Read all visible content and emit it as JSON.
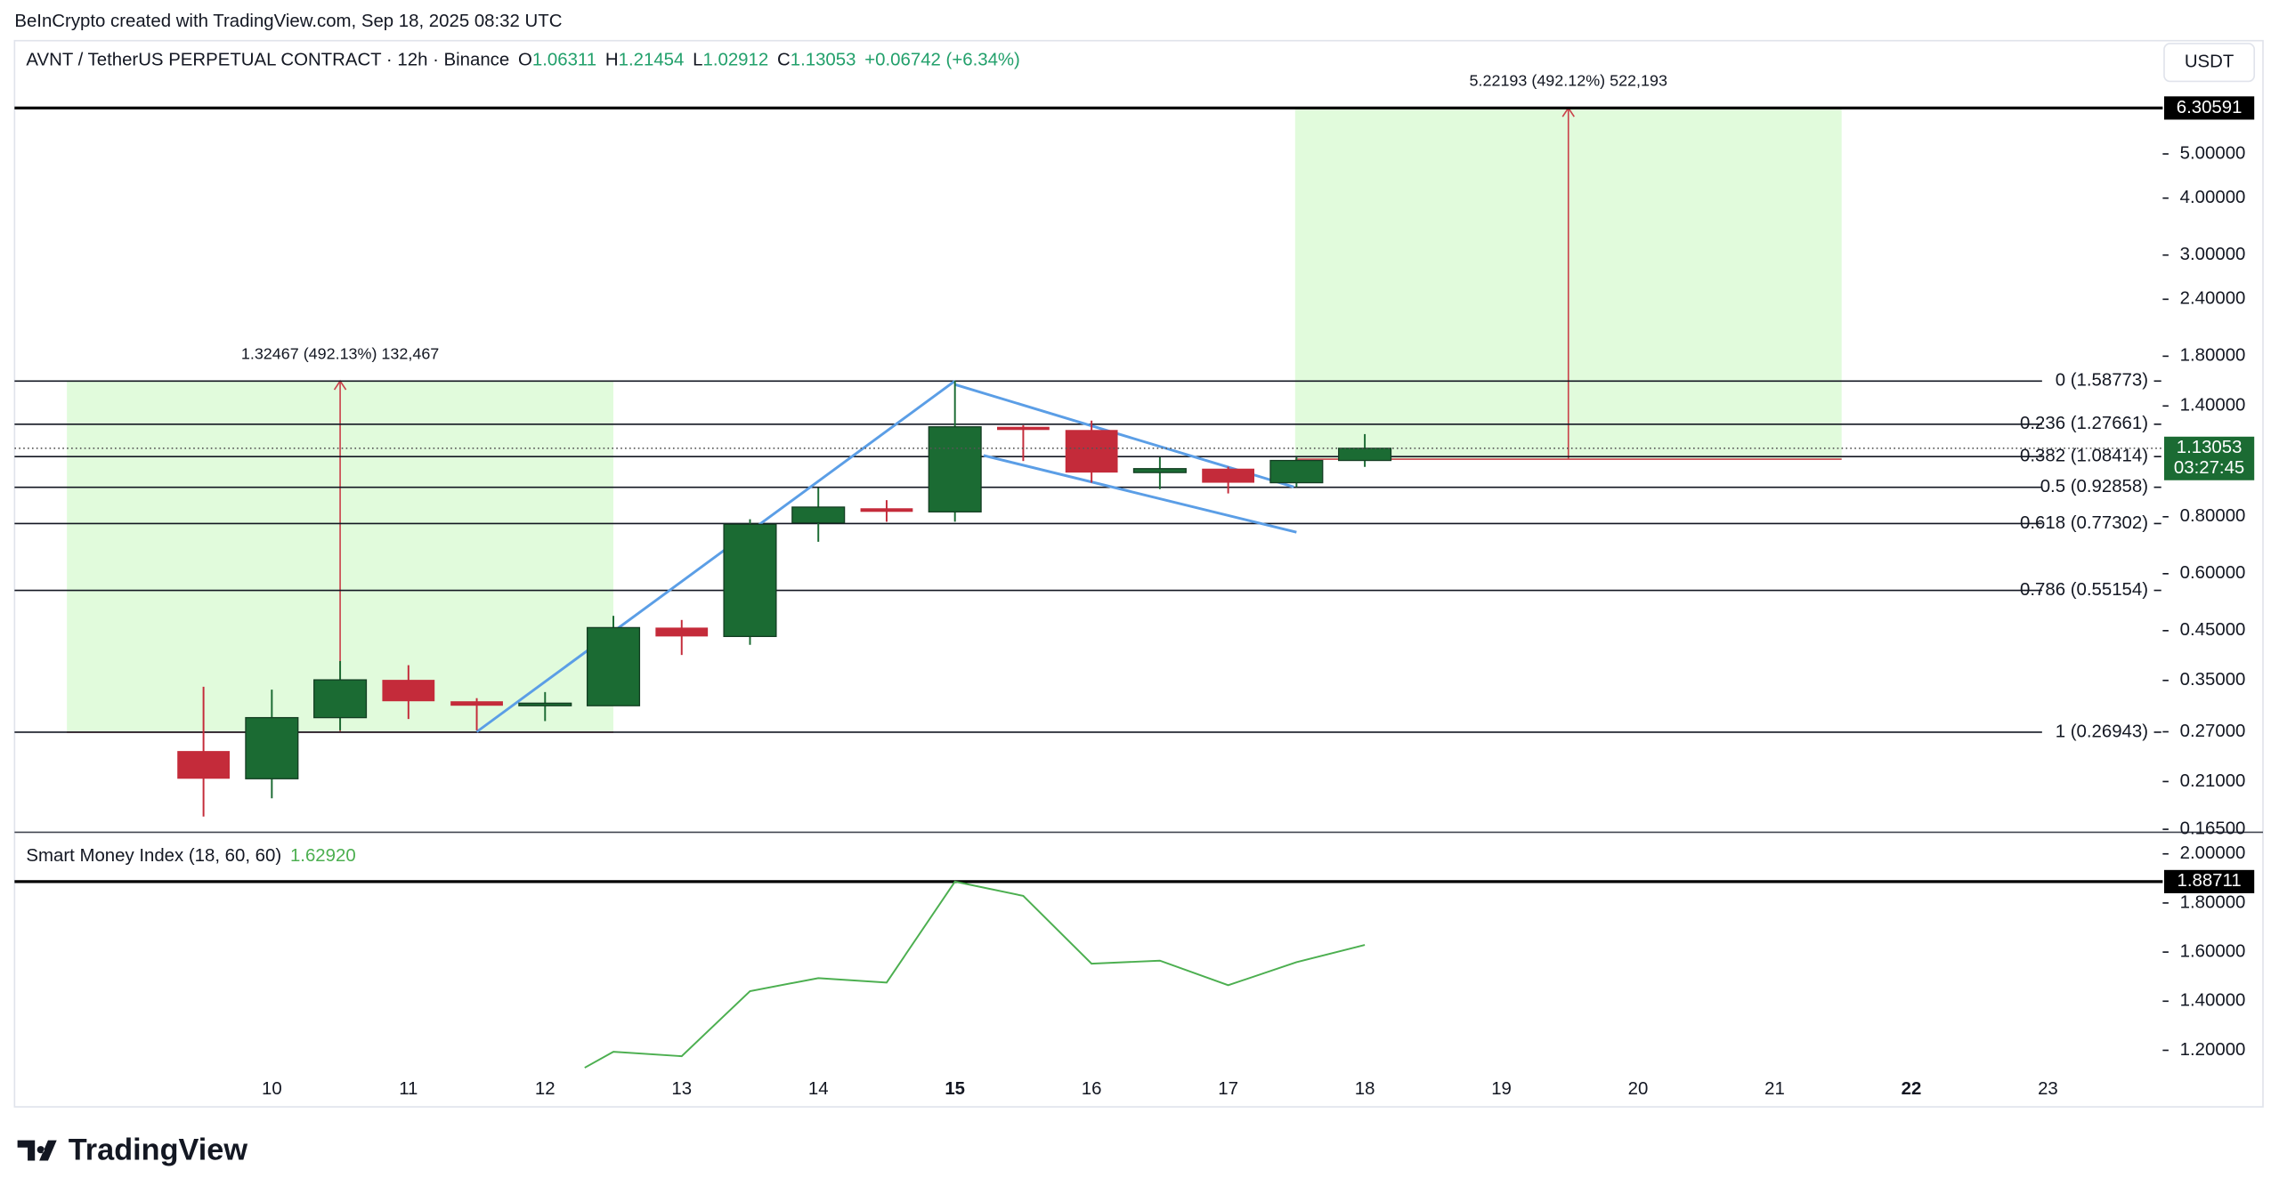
{
  "header": {
    "credit": "BeInCrypto created with TradingView.com, Sep 18, 2025 08:32 UTC",
    "symbol": "AVNT / TetherUS PERPETUAL CONTRACT · 12h · Binance",
    "ohlc_keys": [
      "O",
      "H",
      "L",
      "C"
    ],
    "change": "+0.06742 (+6.34%)",
    "currency": "USDT"
  },
  "chart_data": [
    {
      "type": "candlestick",
      "x": [
        9.5,
        10,
        10.5,
        11,
        11.5,
        12,
        12.5,
        13,
        13.5,
        14,
        14.5,
        15,
        15.5,
        16,
        16.5,
        17,
        17.5,
        18
      ],
      "open": [
        0.245,
        0.213,
        0.29,
        0.351,
        0.315,
        0.308,
        0.308,
        0.457,
        0.437,
        0.776,
        0.835,
        0.82,
        1.26,
        1.24,
        1.0,
        1.02,
        0.95,
        1.06311
      ],
      "high": [
        0.339,
        0.334,
        0.386,
        0.378,
        0.32,
        0.33,
        0.485,
        0.475,
        0.79,
        0.925,
        0.87,
        1.59,
        1.27,
        1.3,
        1.08,
        1.03,
        1.08,
        1.21454
      ],
      "low": [
        0.176,
        0.193,
        0.272,
        0.288,
        0.272,
        0.285,
        0.308,
        0.398,
        0.419,
        0.705,
        0.78,
        0.78,
        1.06,
        0.95,
        0.92,
        0.9,
        0.93,
        1.02912
      ],
      "close": [
        0.213,
        0.29,
        0.351,
        0.315,
        0.308,
        0.312,
        0.457,
        0.437,
        0.77,
        0.84,
        0.82,
        1.26,
        1.24,
        1.0,
        1.02,
        0.95,
        1.063,
        1.13053
      ],
      "up_color": "#1b6b33",
      "down_color": "#c42b3a",
      "xlim": [
        8.117,
        23.755
      ],
      "xticks": [
        10,
        11,
        12,
        13,
        14,
        15,
        16,
        17,
        18,
        19,
        20,
        21,
        22,
        23
      ],
      "emphasized_xticks": [
        15,
        22
      ],
      "ylim": [
        0.1625,
        8.86
      ],
      "log_scale": true,
      "yticks": [
        {
          "value": 5,
          "label": "5.00000"
        },
        {
          "value": 4,
          "label": "4.00000"
        },
        {
          "value": 3,
          "label": "3.00000"
        },
        {
          "value": 2.4,
          "label": "2.40000"
        },
        {
          "value": 1.8,
          "label": "1.80000"
        },
        {
          "value": 1.4,
          "label": "1.40000"
        },
        {
          "value": 0.8,
          "label": "0.80000"
        },
        {
          "value": 0.6,
          "label": "0.60000"
        },
        {
          "value": 0.45,
          "label": "0.45000"
        },
        {
          "value": 0.35,
          "label": "0.35000"
        },
        {
          "value": 0.27,
          "label": "0.27000"
        },
        {
          "value": 0.21,
          "label": "0.21000"
        },
        {
          "value": 0.165,
          "label": "0.16500"
        }
      ],
      "fib_levels": [
        {
          "label": "0 (1.58773)",
          "value": 1.58773
        },
        {
          "label": "0.236 (1.27661)",
          "value": 1.27661
        },
        {
          "label": "0.382 (1.08414)",
          "value": 1.08414
        },
        {
          "label": "0.5 (0.92858)",
          "value": 0.92858
        },
        {
          "label": "0.618 (0.77302)",
          "value": 0.77302
        },
        {
          "label": "0.786 (0.55154)",
          "value": 0.55154
        },
        {
          "label": "1 (0.26943)",
          "value": 0.26943
        }
      ],
      "price_line": 6.30591,
      "countdown": "03:27:45",
      "target_zones": [
        {
          "x": [
            8.5,
            12.5
          ],
          "y": [
            0.26943,
            1.58773
          ],
          "arrow_x": 10.5,
          "label": "1.32467 (492.13%) 132,467"
        },
        {
          "x": [
            17.49,
            21.49
          ],
          "y": [
            1.07,
            6.30591
          ],
          "arrow_x": 19.49,
          "label": "5.22193 (492.12%) 522,193"
        }
      ],
      "zone_color": "#e1fbdc",
      "arrow_color": "#c9424a",
      "trendlines": [
        {
          "x": [
            11.5,
            15
          ],
          "y": [
            0.27,
            1.588
          ]
        },
        {
          "x": [
            15,
            17.48
          ],
          "y": [
            1.56,
            0.93
          ]
        },
        {
          "x": [
            15.21,
            17.5
          ],
          "y": [
            1.09,
            0.74
          ]
        }
      ],
      "trend_color": "#5b9ee6"
    },
    {
      "type": "line",
      "name": "Smart Money Index (18, 60, 60)",
      "last_value_label": "1.62920",
      "color": "#4caf50",
      "x": [
        12.29,
        12.5,
        13,
        13.5,
        14,
        14.5,
        15,
        15.5,
        16,
        16.5,
        17,
        17.5,
        18
      ],
      "values": [
        1.129,
        1.194,
        1.176,
        1.441,
        1.494,
        1.476,
        1.887,
        1.829,
        1.553,
        1.565,
        1.465,
        1.559,
        1.6292
      ],
      "ylim": [
        1.088,
        2.076
      ],
      "yticks": [
        {
          "value": 1.2,
          "label": "1.20000"
        },
        {
          "value": 1.4,
          "label": "1.40000"
        },
        {
          "value": 1.6,
          "label": "1.60000"
        },
        {
          "value": 1.8,
          "label": "1.80000"
        },
        {
          "value": 2,
          "label": "2.00000"
        }
      ],
      "max_line": 1.88711
    }
  ],
  "footer": {
    "brand": "TradingView"
  }
}
